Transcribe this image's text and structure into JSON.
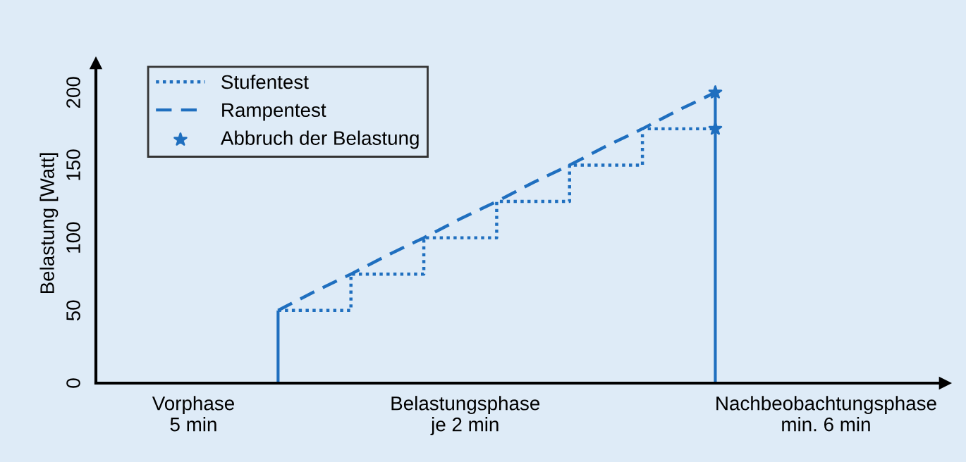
{
  "chart_data": {
    "type": "line",
    "ylabel": "Belastung [Watt]",
    "ylim": [
      0,
      220
    ],
    "yticks": [
      0,
      50,
      100,
      150,
      200
    ],
    "categories": [
      null,
      null,
      null,
      null,
      null,
      null,
      null,
      null,
      null,
      null,
      null,
      null,
      null
    ],
    "annotations": [
      "Vorphase\n5 min",
      "Belastungsphase\nje 2 min",
      "Nachbeobachtungsphase\nmin. 6 min"
    ],
    "series": [
      {
        "name": "Stufentest",
        "type": "step",
        "line_style": "dotted",
        "color": "#1f6fbf",
        "values": [
          50,
          50,
          75,
          75,
          100,
          100,
          125,
          125,
          150,
          150,
          175,
          175,
          175
        ]
      },
      {
        "name": "Rampentest",
        "line_style": "dashed",
        "color": "#1f6fbf",
        "values": [
          50,
          63,
          75,
          88,
          100,
          113,
          125,
          138,
          150,
          163,
          175,
          188,
          200
        ]
      },
      {
        "name": "Abbruch der Belastung",
        "type": "scatter",
        "marker": "star",
        "color": "#1f6fbf",
        "values": [
          null,
          null,
          null,
          null,
          null,
          null,
          null,
          null,
          null,
          null,
          null,
          null,
          200
        ]
      },
      {
        "type": "scatter",
        "marker": "star",
        "color": "#1f6fbf",
        "values": [
          null,
          null,
          null,
          null,
          null,
          null,
          null,
          null,
          null,
          null,
          null,
          null,
          175
        ]
      },
      {
        "type": "bar",
        "color": "#1f6fbf",
        "values": [
          50,
          null,
          null,
          null,
          null,
          null,
          null,
          null,
          null,
          null,
          null,
          null,
          200
        ]
      }
    ],
    "grid": false,
    "legend": "top left"
  }
}
